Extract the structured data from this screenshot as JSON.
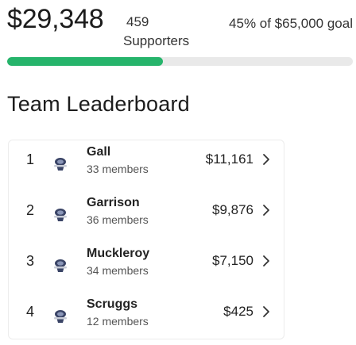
{
  "fundraiser": {
    "amount_raised": "$29,348",
    "supporters_count": "459",
    "supporters_label": "Supporters",
    "goal_text": "45% of $65,000 goal",
    "progress_percent": 45,
    "accent_color": "#26b46b"
  },
  "leaderboard": {
    "title": "Team Leaderboard",
    "teams": [
      {
        "rank": "1",
        "name": "Gall",
        "members": "33 members",
        "amount": "$11,161",
        "icon": "team-emblem-icon"
      },
      {
        "rank": "2",
        "name": "Garrison",
        "members": "36 members",
        "amount": "$9,876",
        "icon": "team-emblem-icon"
      },
      {
        "rank": "3",
        "name": "Muckleroy",
        "members": "34 members",
        "amount": "$7,150",
        "icon": "team-emblem-icon"
      },
      {
        "rank": "4",
        "name": "Scruggs",
        "members": "12 members",
        "amount": "$425",
        "icon": "team-emblem-icon"
      }
    ],
    "chevron_icon": "chevron-right-icon"
  }
}
